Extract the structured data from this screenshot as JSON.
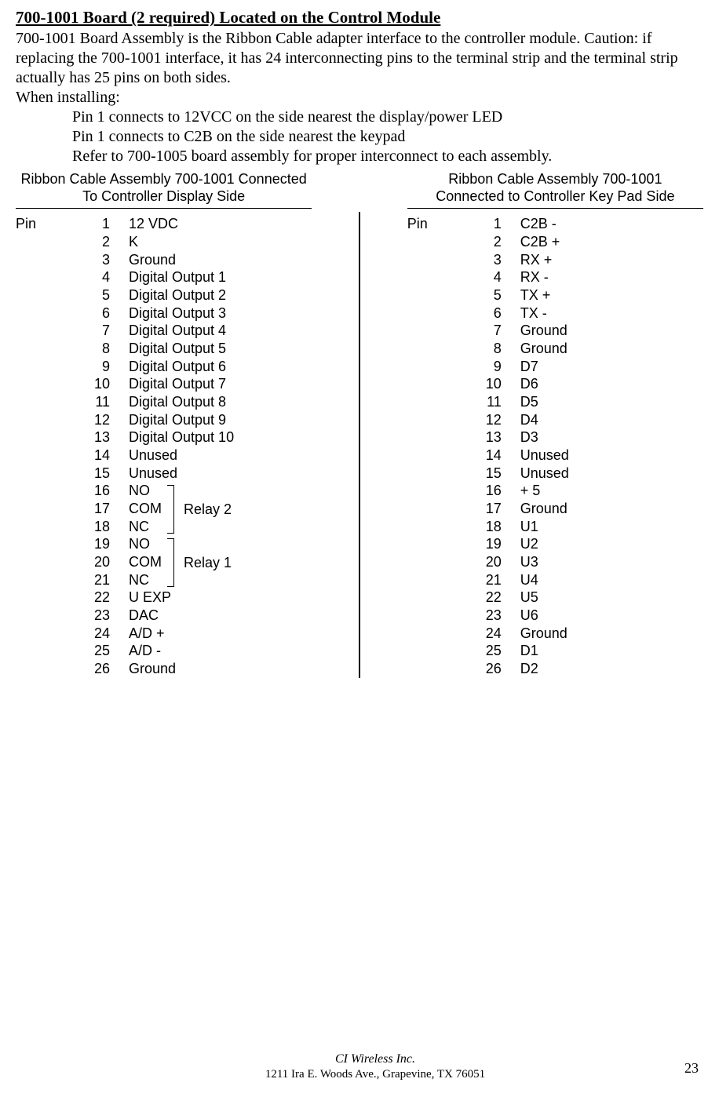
{
  "heading": "700-1001 Board (2 required) Located on the Control Module",
  "para1": "700-1001 Board Assembly is the Ribbon Cable adapter interface to the controller module.  Caution: if replacing the 700-1001 interface, it has 24 interconnecting pins to the terminal strip and the terminal strip actually has 25 pins on both sides.",
  "para2": "When installing:",
  "bullets": [
    "Pin 1 connects to 12VCC on the side nearest the display/power LED",
    "Pin 1 connects to C2B on the side nearest the keypad",
    "Refer to 700-1005 board assembly for proper interconnect to each assembly."
  ],
  "left_header_l1": "Ribbon Cable Assembly 700-1001 Connected",
  "left_header_l2": "To Controller Display Side",
  "right_header_l1": "Ribbon Cable Assembly 700-1001",
  "right_header_l2": "Connected to Controller Key Pad Side",
  "pin_label": "Pin",
  "left_pins": [
    {
      "n": "1",
      "d": "12 VDC"
    },
    {
      "n": "2",
      "d": "K"
    },
    {
      "n": "3",
      "d": "Ground"
    },
    {
      "n": "4",
      "d": "Digital Output  1"
    },
    {
      "n": "5",
      "d": "Digital Output 2"
    },
    {
      "n": "6",
      "d": "Digital Output 3"
    },
    {
      "n": "7",
      "d": "Digital Output 4"
    },
    {
      "n": "8",
      "d": "Digital Output 5"
    },
    {
      "n": "9",
      "d": "Digital Output 6"
    },
    {
      "n": "10",
      "d": "Digital Output 7"
    },
    {
      "n": "11",
      "d": "Digital Output 8"
    },
    {
      "n": "12",
      "d": "Digital Output 9"
    },
    {
      "n": "13",
      "d": "Digital Output 10"
    },
    {
      "n": "14",
      "d": "Unused"
    },
    {
      "n": "15",
      "d": "Unused"
    },
    {
      "n": "16",
      "d": "NO"
    },
    {
      "n": "17",
      "d": "COM"
    },
    {
      "n": "18",
      "d": "NC"
    },
    {
      "n": "19",
      "d": "NO"
    },
    {
      "n": "20",
      "d": "COM"
    },
    {
      "n": "21",
      "d": "NC"
    },
    {
      "n": "22",
      "d": "U EXP"
    },
    {
      "n": "23",
      "d": "DAC"
    },
    {
      "n": "24",
      "d": "A/D +"
    },
    {
      "n": "25",
      "d": "A/D  -"
    },
    {
      "n": "26",
      "d": "Ground"
    }
  ],
  "right_pins": [
    {
      "n": "1",
      "d": "C2B -"
    },
    {
      "n": "2",
      "d": "C2B +"
    },
    {
      "n": "3",
      "d": "RX +"
    },
    {
      "n": "4",
      "d": "RX  -"
    },
    {
      "n": "5",
      "d": "TX +"
    },
    {
      "n": "6",
      "d": "TX  -"
    },
    {
      "n": "7",
      "d": "Ground"
    },
    {
      "n": "8",
      "d": "Ground"
    },
    {
      "n": "9",
      "d": "D7"
    },
    {
      "n": "10",
      "d": "D6"
    },
    {
      "n": "11",
      "d": "D5"
    },
    {
      "n": "12",
      "d": "D4"
    },
    {
      "n": "13",
      "d": "D3"
    },
    {
      "n": "14",
      "d": "Unused"
    },
    {
      "n": "15",
      "d": "Unused"
    },
    {
      "n": "16",
      "d": "+ 5"
    },
    {
      "n": "17",
      "d": "Ground"
    },
    {
      "n": "18",
      "d": "U1"
    },
    {
      "n": "19",
      "d": "U2"
    },
    {
      "n": "20",
      "d": "U3"
    },
    {
      "n": "21",
      "d": "U4"
    },
    {
      "n": "22",
      "d": "U5"
    },
    {
      "n": "23",
      "d": "U6"
    },
    {
      "n": "24",
      "d": "Ground"
    },
    {
      "n": "25",
      "d": "D1"
    },
    {
      "n": "26",
      "d": "D2"
    }
  ],
  "relay2_label": "Relay 2",
  "relay1_label": "Relay 1",
  "footer_name": "CI Wireless Inc.",
  "footer_addr": "1211 Ira E. Woods Ave., Grapevine, TX 76051",
  "page_number": "23"
}
